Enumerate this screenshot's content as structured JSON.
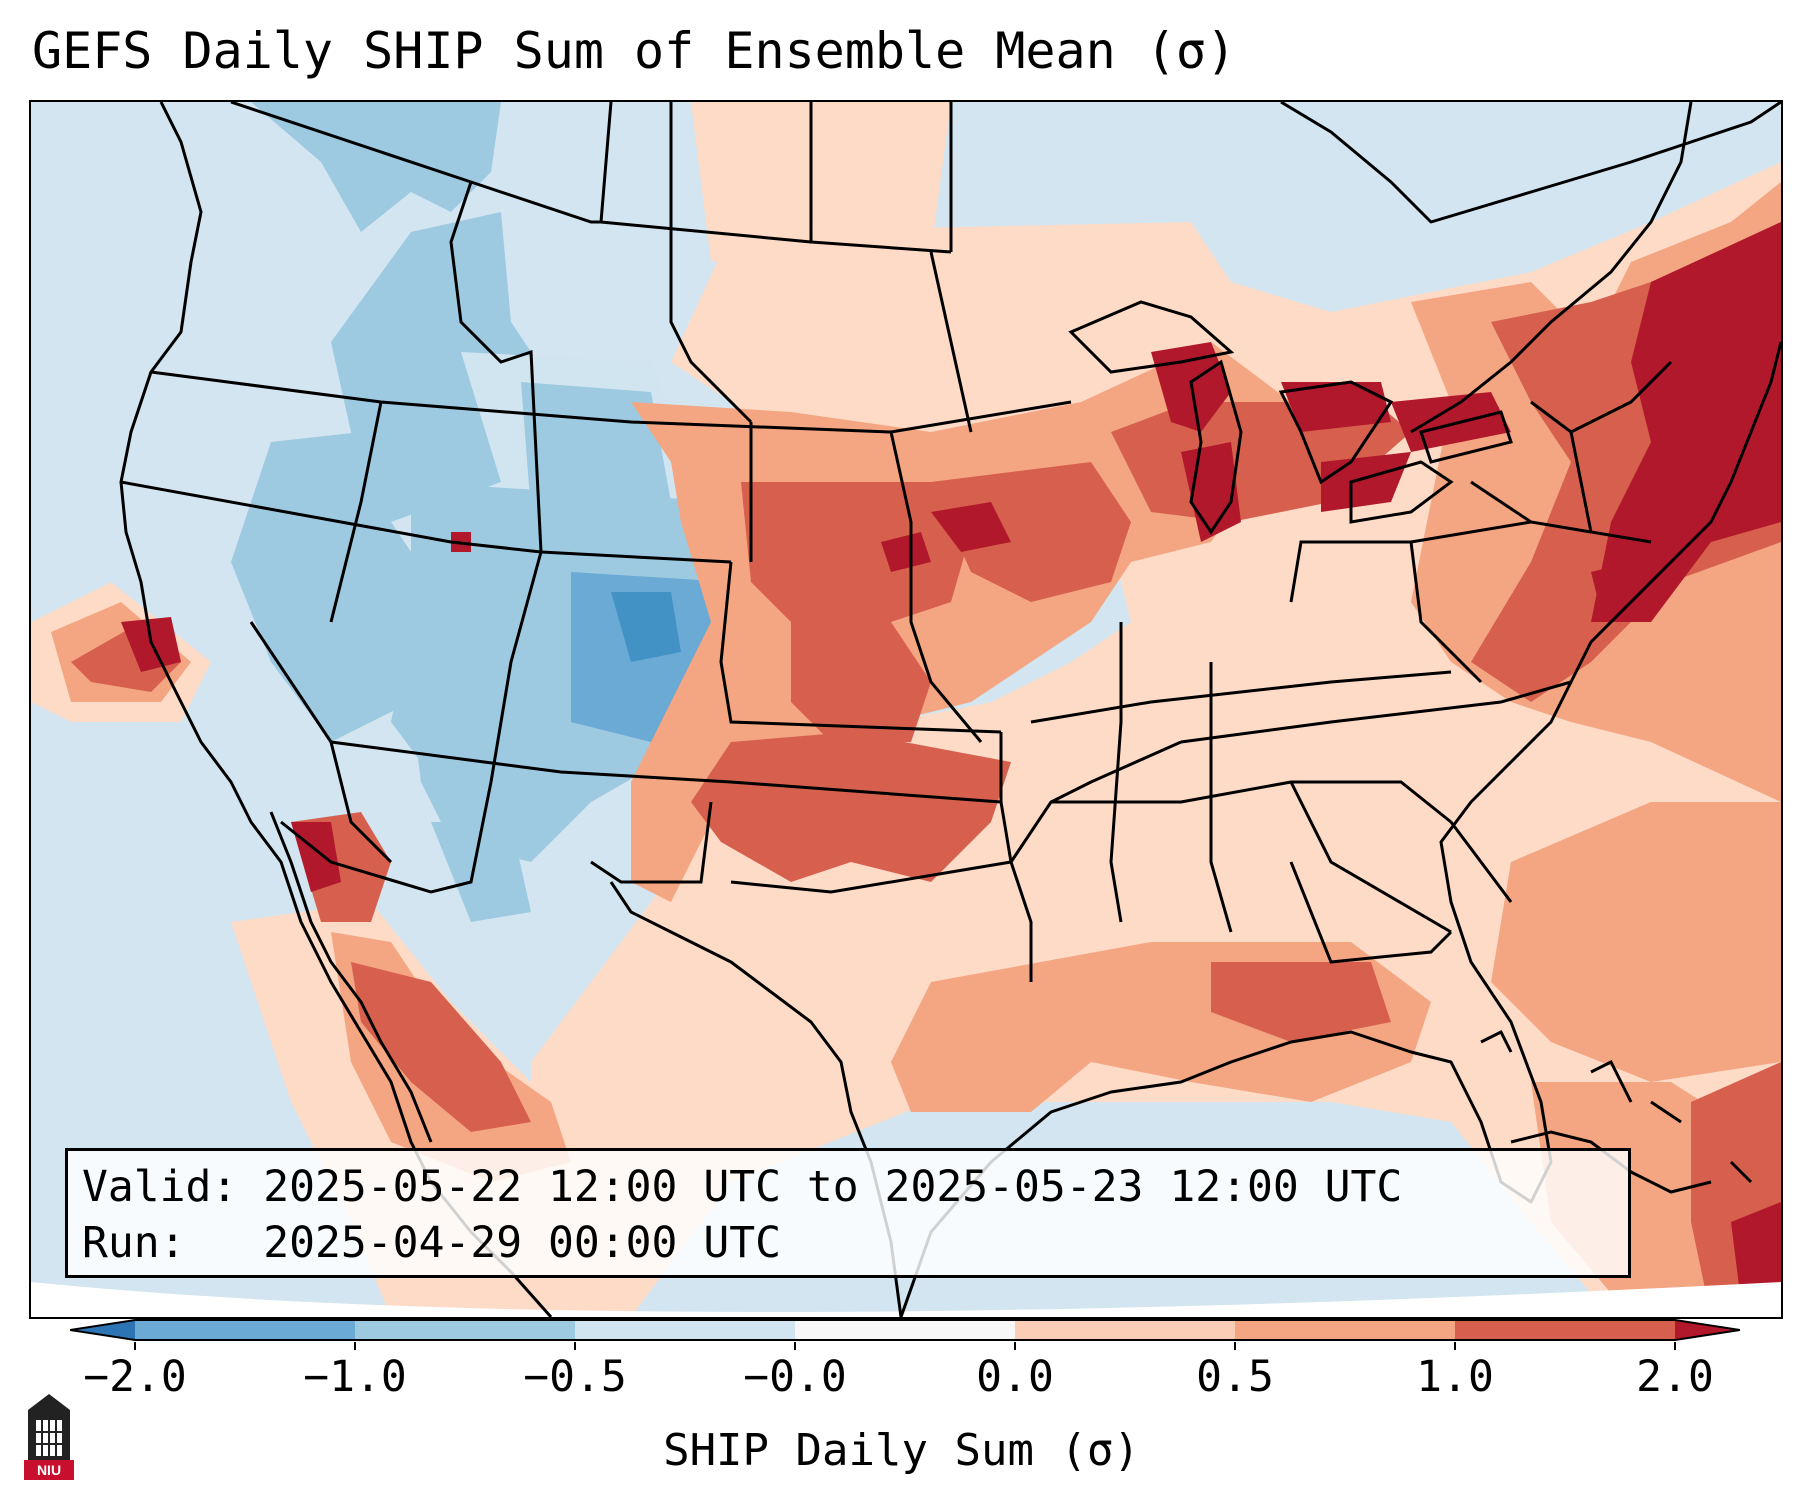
{
  "title": "GEFS Daily SHIP Sum of Ensemble Mean (σ)",
  "info": {
    "valid_label": "Valid:",
    "valid_value": "2025-05-22 12:00 UTC to 2025-05-23 12:00 UTC",
    "run_label": "Run:",
    "run_value": "2025-04-29 00:00 UTC"
  },
  "colorbar": {
    "label": "SHIP Daily Sum (σ)",
    "ticks": [
      "−2.0",
      "−1.0",
      "−0.5",
      "−0.0",
      "0.0",
      "0.5",
      "1.0",
      "2.0"
    ],
    "colors": [
      "#2d74b5",
      "#6aaad5",
      "#9ecae1",
      "#d1e5f0",
      "#f7f7f7",
      "#fccdb6",
      "#f4a582",
      "#d6604d",
      "#b2182b"
    ]
  },
  "logo": {
    "text": "NIU"
  },
  "map_colors": {
    "ocean_land_neutral": "#d2e5f0",
    "light_blue": "#d1e5f0",
    "mid_blue": "#9ecae1",
    "dark_blue": "#6aaad5",
    "deep_blue": "#4292c6",
    "light_red": "#fddbc7",
    "mid_red": "#f4a582",
    "dark_red": "#d6604d",
    "deep_red": "#b2182b"
  }
}
